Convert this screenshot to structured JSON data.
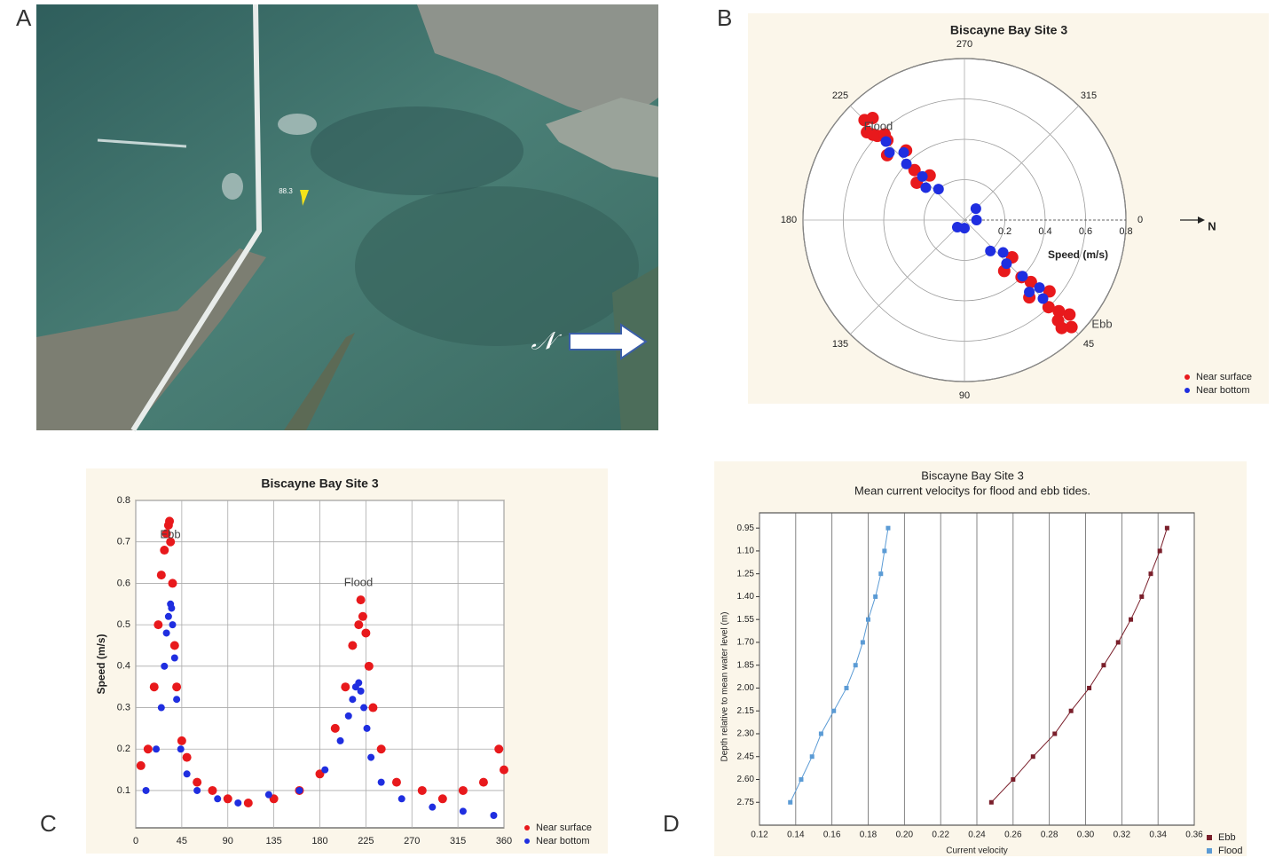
{
  "panels": [
    "A",
    "B",
    "C",
    "D"
  ],
  "map": {
    "pin_label": "88.3",
    "north_label": "𝒩"
  },
  "chart_data": [
    {
      "type": "polar_scatter",
      "title": "Biscayne Bay Site 3",
      "radial_label": "Speed (m/s)",
      "rlim": [
        0,
        0.8
      ],
      "rticks": [
        0.2,
        0.4,
        0.6,
        0.8
      ],
      "angle_ticks": [
        0,
        45,
        90,
        135,
        180,
        225,
        270,
        315
      ],
      "annotations": [
        "Flood",
        "Ebb"
      ],
      "north_label": "N",
      "legend": "lower right",
      "series": [
        {
          "name": "Near surface",
          "color": "#e8191c",
          "theta": [
            45,
            42,
            48,
            44,
            46,
            40,
            50,
            43,
            47,
            45,
            225,
            222,
            228,
            224,
            226,
            220,
            230,
            223,
            227,
            225,
            38,
            52,
            218,
            232
          ],
          "r": [
            0.75,
            0.7,
            0.72,
            0.65,
            0.6,
            0.55,
            0.5,
            0.45,
            0.68,
            0.4,
            0.7,
            0.65,
            0.68,
            0.6,
            0.55,
            0.5,
            0.45,
            0.62,
            0.58,
            0.35,
            0.3,
            0.32,
            0.3,
            0.28
          ]
        },
        {
          "name": "Near bottom",
          "color": "#1f2ee0",
          "theta": [
            45,
            42,
            48,
            44,
            46,
            40,
            50,
            225,
            222,
            228,
            224,
            226,
            220,
            230,
            135,
            315,
            90,
            0
          ],
          "r": [
            0.55,
            0.5,
            0.48,
            0.4,
            0.3,
            0.25,
            0.2,
            0.55,
            0.5,
            0.45,
            0.4,
            0.3,
            0.25,
            0.2,
            0.05,
            0.08,
            0.04,
            0.06
          ]
        }
      ]
    },
    {
      "type": "scatter",
      "title": "Biscayne Bay Site 3",
      "ylabel": "Speed (m/s)",
      "xlim": [
        0,
        360
      ],
      "xticks": [
        0,
        45,
        90,
        135,
        180,
        225,
        270,
        315,
        360
      ],
      "ylim": [
        0.01,
        0.8
      ],
      "yticks": [
        0.1,
        0.2,
        0.3,
        0.4,
        0.5,
        0.6,
        0.7,
        0.8
      ],
      "grid": true,
      "annotations": [
        "Ebb",
        "Flood"
      ],
      "legend": "lower right",
      "series": [
        {
          "name": "Near surface",
          "color": "#e8191c",
          "x": [
            5,
            12,
            18,
            22,
            25,
            28,
            30,
            32,
            33,
            34,
            36,
            38,
            40,
            45,
            50,
            60,
            75,
            90,
            110,
            135,
            160,
            180,
            195,
            205,
            212,
            218,
            220,
            222,
            225,
            228,
            232,
            240,
            255,
            280,
            300,
            320,
            340,
            355,
            360
          ],
          "values": [
            0.16,
            0.2,
            0.35,
            0.5,
            0.62,
            0.68,
            0.72,
            0.74,
            0.75,
            0.7,
            0.6,
            0.45,
            0.35,
            0.22,
            0.18,
            0.12,
            0.1,
            0.08,
            0.07,
            0.08,
            0.1,
            0.14,
            0.25,
            0.35,
            0.45,
            0.5,
            0.56,
            0.52,
            0.48,
            0.4,
            0.3,
            0.2,
            0.12,
            0.1,
            0.08,
            0.1,
            0.12,
            0.2,
            0.15
          ]
        },
        {
          "name": "Near bottom",
          "color": "#1f2ee0",
          "x": [
            10,
            20,
            25,
            28,
            30,
            32,
            34,
            35,
            36,
            38,
            40,
            44,
            50,
            60,
            80,
            100,
            130,
            160,
            185,
            200,
            208,
            212,
            215,
            218,
            220,
            223,
            226,
            230,
            240,
            260,
            290,
            320,
            350
          ],
          "values": [
            0.1,
            0.2,
            0.3,
            0.4,
            0.48,
            0.52,
            0.55,
            0.54,
            0.5,
            0.42,
            0.32,
            0.2,
            0.14,
            0.1,
            0.08,
            0.07,
            0.09,
            0.1,
            0.15,
            0.22,
            0.28,
            0.32,
            0.35,
            0.36,
            0.34,
            0.3,
            0.25,
            0.18,
            0.12,
            0.08,
            0.06,
            0.05,
            0.04
          ]
        }
      ]
    },
    {
      "type": "line",
      "title": "Biscayne Bay Site 3",
      "subtitle": "Mean current velocitys for flood and ebb tides.",
      "xlabel": "Current velocity",
      "ylabel": "Depth relative to mean water level (m)",
      "xlim": [
        0.12,
        0.36
      ],
      "xticks": [
        0.12,
        0.14,
        0.16,
        0.18,
        {
          "value": 0.2,
          "label": "0.20"
        },
        0.22,
        0.24,
        0.26,
        0.28,
        {
          "value": 0.3,
          "label": "0.30"
        },
        0.32,
        0.34,
        0.36
      ],
      "ylim": [
        2.9,
        0.85
      ],
      "yticks": [
        0.95,
        {
          "value": 1.1,
          "label": "1.10"
        },
        1.25,
        {
          "value": 1.4,
          "label": "1.40"
        },
        1.55,
        {
          "value": 1.7,
          "label": "1.70"
        },
        1.85,
        {
          "value": 2,
          "label": "2.00"
        },
        2.15,
        {
          "value": 2.3,
          "label": "2.30"
        },
        2.45,
        {
          "value": 2.6,
          "label": "2.60"
        },
        2.75
      ],
      "grid": true,
      "legend": "lower right",
      "series": [
        {
          "name": "Ebb",
          "color": "#7a1f2b",
          "x": [
            0.345,
            0.341,
            0.336,
            0.331,
            0.325,
            0.318,
            0.31,
            0.302,
            0.292,
            0.283,
            0.271,
            0.26,
            0.248
          ],
          "values": [
            0.95,
            1.1,
            1.25,
            1.4,
            1.55,
            1.7,
            1.85,
            2,
            2.15,
            2.3,
            2.45,
            2.6,
            2.75
          ]
        },
        {
          "name": "Flood",
          "color": "#5b9bd5",
          "x": [
            0.191,
            0.189,
            0.187,
            0.184,
            0.18,
            0.177,
            0.173,
            0.168,
            0.161,
            0.154,
            0.149,
            0.143,
            0.137
          ],
          "values": [
            0.95,
            1.1,
            1.25,
            1.4,
            1.55,
            1.7,
            1.85,
            2,
            2.15,
            2.3,
            2.45,
            2.6,
            2.75
          ]
        }
      ]
    }
  ]
}
